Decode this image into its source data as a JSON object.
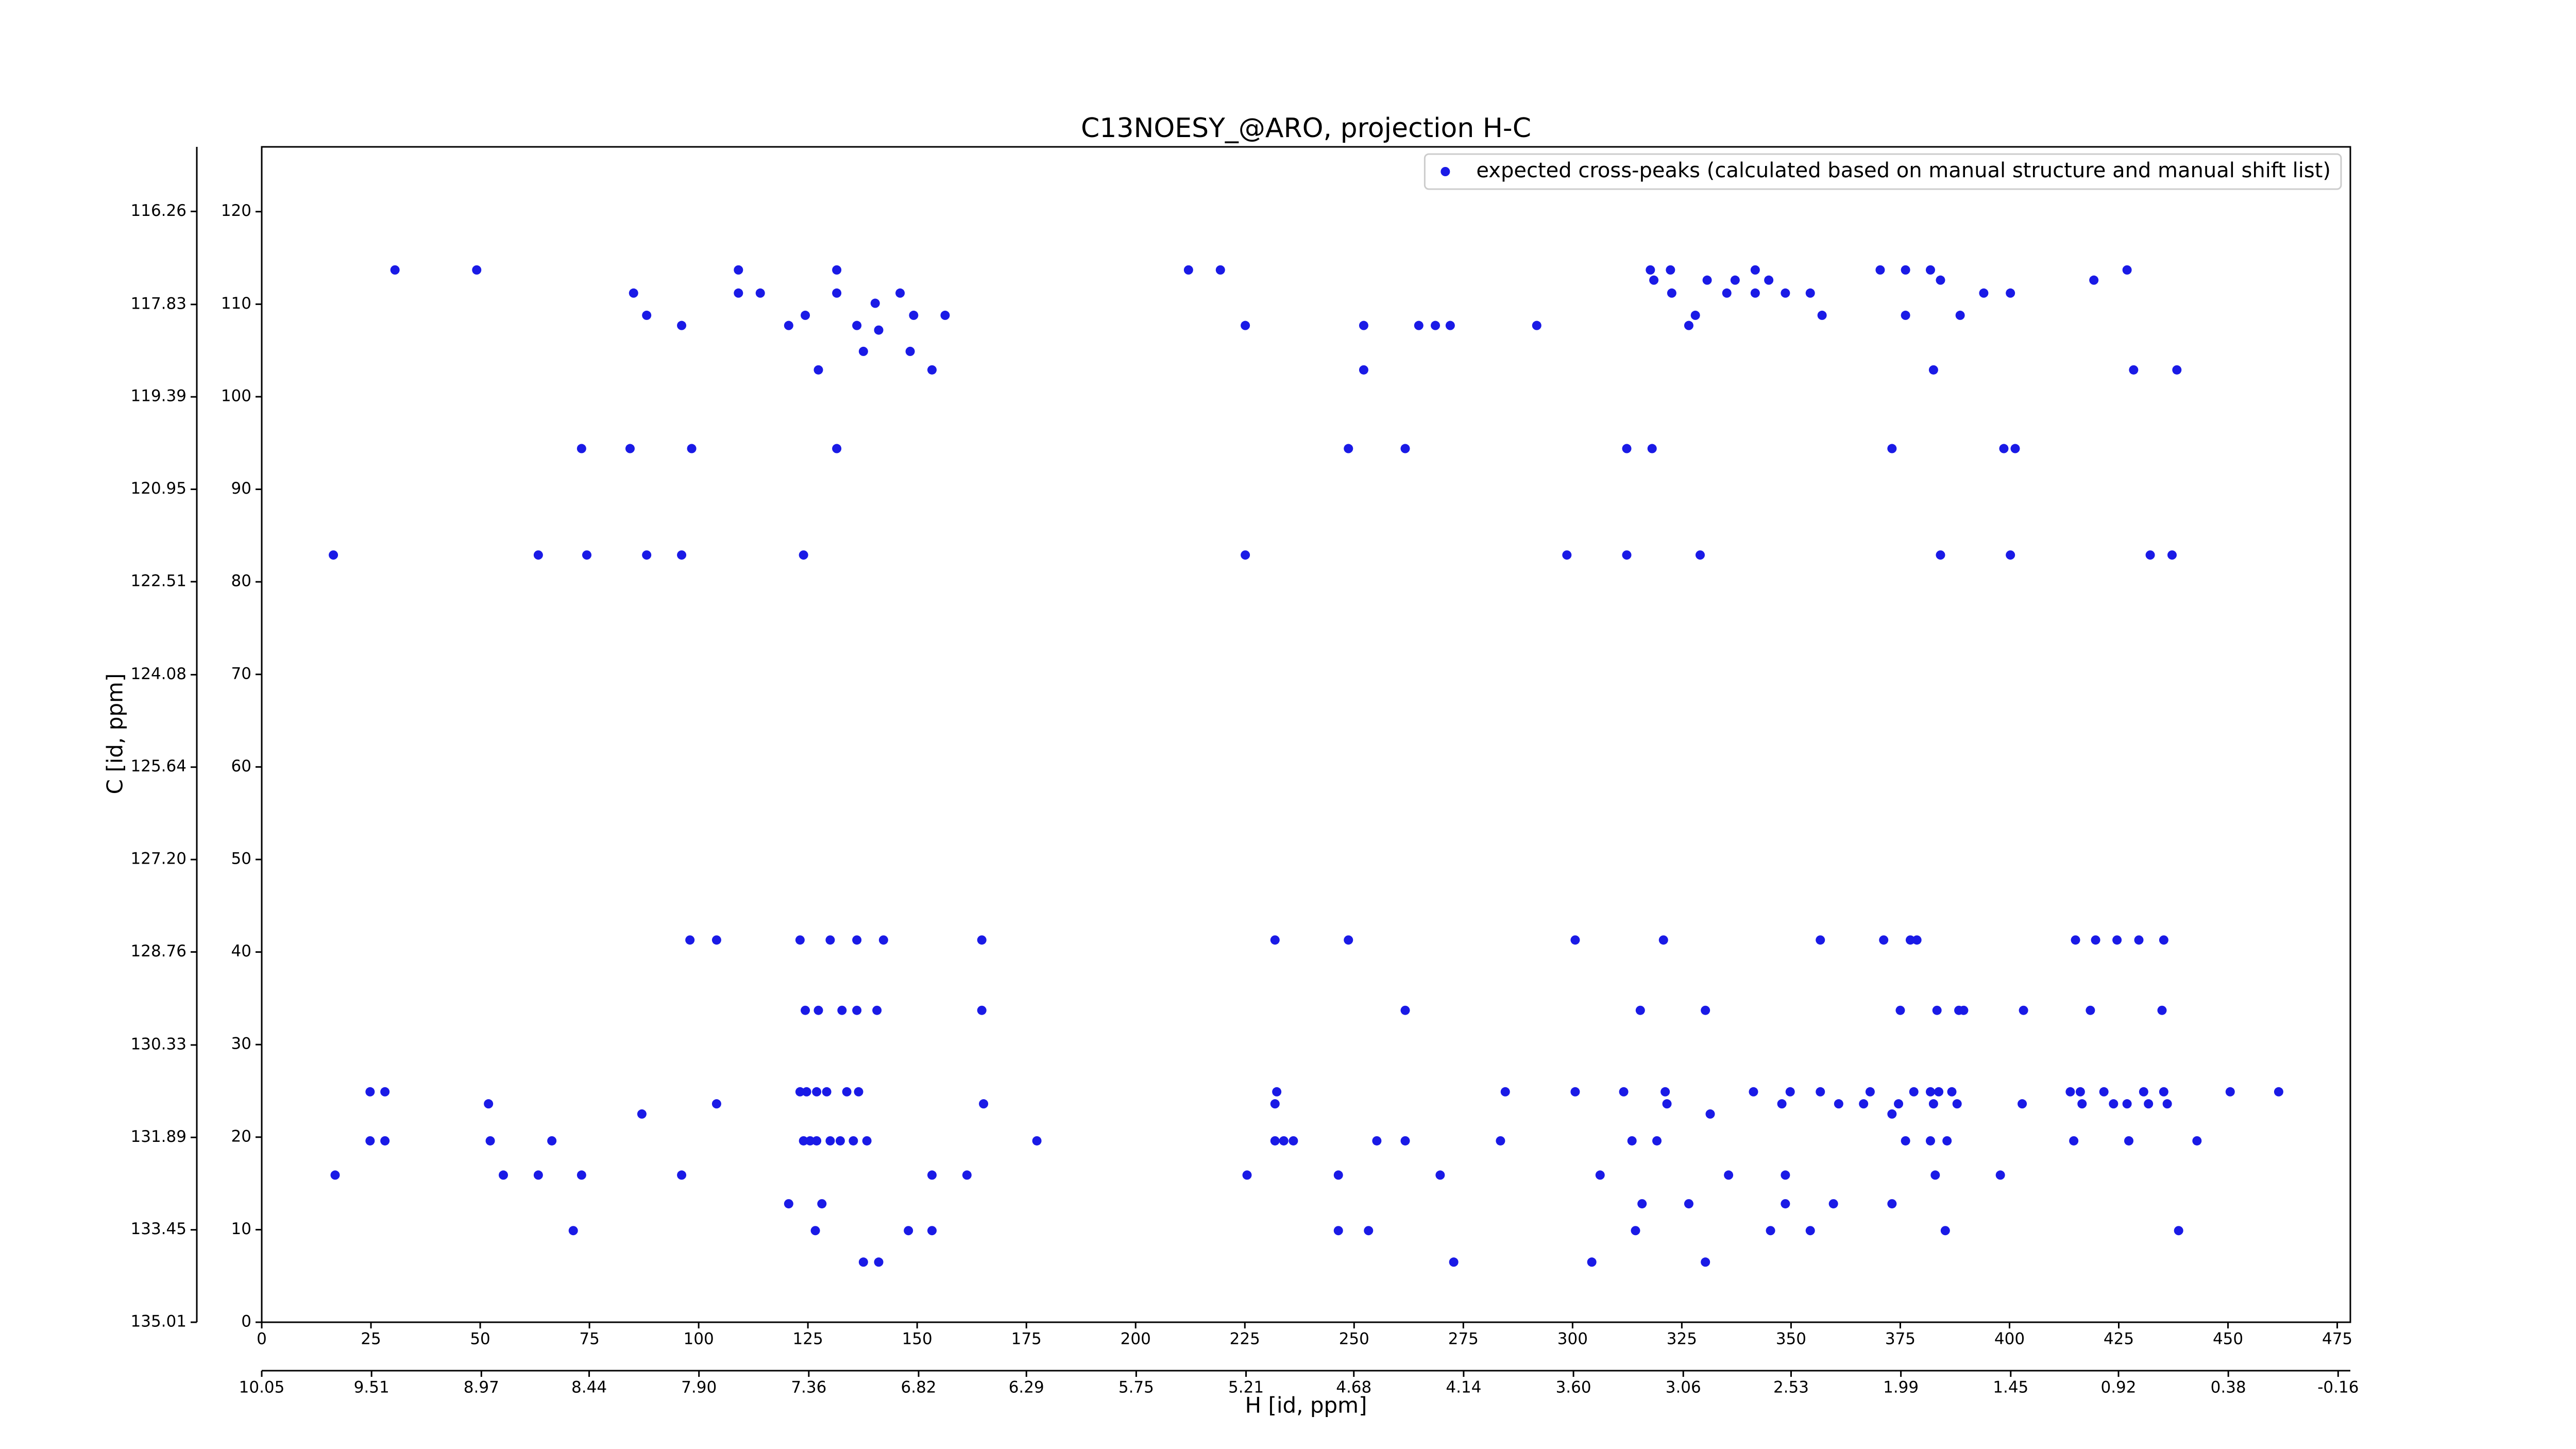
{
  "chart_data": {
    "type": "scatter",
    "title": "C13NOESY_@ARO, projection H-C",
    "x_label": "H [id, ppm]",
    "y_label": "C [id, ppm]",
    "xlim": [
      0,
      478
    ],
    "ylim": [
      0,
      127
    ],
    "xticks": [
      0,
      25,
      50,
      75,
      100,
      125,
      150,
      175,
      200,
      225,
      250,
      275,
      300,
      325,
      350,
      375,
      400,
      425,
      450,
      475
    ],
    "yticks": [
      0,
      10,
      20,
      30,
      40,
      50,
      60,
      70,
      80,
      90,
      100,
      110,
      120
    ],
    "x2lim": [
      10.05,
      -0.22
    ],
    "x2ticks": [
      10.05,
      9.51,
      8.97,
      8.44,
      {
        "value": 7.9,
        "label": "7.90"
      },
      7.36,
      6.82,
      6.29,
      5.75,
      5.21,
      4.68,
      4.14,
      {
        "value": 3.6,
        "label": "3.60"
      },
      3.06,
      2.53,
      1.99,
      1.45,
      0.92,
      0.38,
      -0.16
    ],
    "y2lim": [
      135.01,
      115.17
    ],
    "y2ticks": [
      116.26,
      117.83,
      119.39,
      120.95,
      122.51,
      124.08,
      125.64,
      {
        "value": 127.2,
        "label": "127.20"
      },
      128.76,
      130.33,
      131.89,
      133.45,
      135.01
    ],
    "legend_position": "upper right",
    "series": [
      {
        "name": "expected cross-peaks (calculated based on manual structure and manual shift list)",
        "color": "#1a1ae6",
        "x": [
          30.5,
          49.2,
          109.1,
          131.6,
          212.1,
          219.4,
          317.8,
          322.4,
          341.8,
          370.4,
          376.2,
          381.9,
          426.9,
          318.6,
          330.8,
          337.2,
          344.9,
          384.2,
          419.3,
          85.1,
          109.1,
          114.1,
          131.6,
          146.1,
          322.7,
          335.3,
          341.8,
          348.7,
          354.4,
          394.1,
          400.2,
          140.4,
          88.1,
          124.4,
          149.2,
          156.4,
          328.1,
          357.1,
          376.2,
          388.7,
          96.1,
          120.6,
          136.2,
          225.1,
          252.2,
          264.8,
          268.6,
          272.0,
          291.8,
          326.6,
          141.2,
          137.7,
          148.4,
          127.4,
          153.4,
          252.2,
          382.6,
          428.4,
          438.3,
          73.2,
          84.3,
          98.4,
          131.6,
          248.7,
          261.7,
          312.4,
          318.2,
          373.1,
          398.7,
          401.3,
          16.4,
          63.3,
          74.4,
          88.1,
          96.1,
          124.0,
          225.1,
          298.7,
          312.4,
          329.2,
          384.2,
          400.2,
          432.2,
          437.2,
          98.0,
          104.1,
          123.2,
          130.1,
          136.2,
          142.3,
          164.8,
          231.9,
          248.7,
          300.6,
          320.8,
          356.7,
          371.2,
          377.3,
          378.8,
          415.1,
          419.7,
          424.6,
          429.6,
          435.3,
          124.4,
          127.4,
          132.8,
          136.2,
          140.8,
          164.8,
          261.7,
          315.5,
          330.4,
          375.0,
          383.4,
          388.4,
          389.5,
          403.2,
          418.5,
          434.9,
          24.8,
          28.2,
          123.2,
          124.7,
          127.0,
          129.3,
          133.9,
          136.6,
          232.3,
          284.6,
          300.6,
          311.7,
          321.2,
          341.4,
          349.8,
          356.7,
          368.1,
          378.1,
          381.9,
          383.8,
          386.8,
          413.9,
          416.2,
          421.6,
          430.7,
          435.3,
          450.5,
          461.6,
          51.9,
          104.1,
          165.2,
          231.9,
          321.6,
          347.9,
          360.9,
          366.6,
          374.6,
          382.6,
          388.0,
          402.9,
          416.6,
          423.8,
          426.9,
          431.8,
          436.1,
          87.0,
          331.5,
          373.1,
          24.8,
          28.2,
          52.3,
          66.4,
          124.0,
          125.5,
          127.0,
          130.1,
          132.4,
          135.4,
          138.5,
          177.4,
          231.9,
          233.9,
          236.1,
          255.2,
          261.7,
          283.5,
          313.6,
          319.3,
          376.2,
          381.9,
          385.7,
          414.7,
          427.3,
          442.9,
          16.8,
          55.3,
          63.3,
          73.2,
          96.1,
          153.4,
          161.4,
          225.5,
          246.4,
          269.7,
          306.3,
          335.7,
          348.7,
          383.0,
          397.9,
          120.6,
          128.2,
          315.9,
          326.6,
          348.7,
          359.7,
          373.1,
          71.3,
          126.7,
          148.0,
          153.4,
          246.4,
          253.3,
          314.4,
          345.3,
          354.4,
          385.3,
          438.7,
          137.7,
          141.2,
          272.8,
          304.4,
          330.4
        ],
        "y": [
          113.7,
          113.7,
          113.7,
          113.7,
          113.7,
          113.7,
          113.7,
          113.7,
          113.7,
          113.7,
          113.7,
          113.7,
          113.7,
          112.6,
          112.6,
          112.6,
          112.6,
          112.6,
          112.6,
          111.2,
          111.2,
          111.2,
          111.2,
          111.2,
          111.2,
          111.2,
          111.2,
          111.2,
          111.2,
          111.2,
          111.2,
          110.1,
          108.8,
          108.8,
          108.8,
          108.8,
          108.8,
          108.8,
          108.8,
          108.8,
          107.7,
          107.7,
          107.7,
          107.7,
          107.7,
          107.7,
          107.7,
          107.7,
          107.7,
          107.7,
          107.2,
          104.9,
          104.9,
          102.9,
          102.9,
          102.9,
          102.9,
          102.9,
          102.9,
          94.4,
          94.4,
          94.4,
          94.4,
          94.4,
          94.4,
          94.4,
          94.4,
          94.4,
          94.4,
          94.4,
          82.9,
          82.9,
          82.9,
          82.9,
          82.9,
          82.9,
          82.9,
          82.9,
          82.9,
          82.9,
          82.9,
          82.9,
          82.9,
          82.9,
          41.3,
          41.3,
          41.3,
          41.3,
          41.3,
          41.3,
          41.3,
          41.3,
          41.3,
          41.3,
          41.3,
          41.3,
          41.3,
          41.3,
          41.3,
          41.3,
          41.3,
          41.3,
          41.3,
          41.3,
          33.7,
          33.7,
          33.7,
          33.7,
          33.7,
          33.7,
          33.7,
          33.7,
          33.7,
          33.7,
          33.7,
          33.7,
          33.7,
          33.7,
          33.7,
          33.7,
          24.9,
          24.9,
          24.9,
          24.9,
          24.9,
          24.9,
          24.9,
          24.9,
          24.9,
          24.9,
          24.9,
          24.9,
          24.9,
          24.9,
          24.9,
          24.9,
          24.9,
          24.9,
          24.9,
          24.9,
          24.9,
          24.9,
          24.9,
          24.9,
          24.9,
          24.9,
          24.9,
          24.9,
          23.6,
          23.6,
          23.6,
          23.6,
          23.6,
          23.6,
          23.6,
          23.6,
          23.6,
          23.6,
          23.6,
          23.6,
          23.6,
          23.6,
          23.6,
          23.6,
          23.6,
          22.5,
          22.5,
          22.5,
          19.6,
          19.6,
          19.6,
          19.6,
          19.6,
          19.6,
          19.6,
          19.6,
          19.6,
          19.6,
          19.6,
          19.6,
          19.6,
          19.6,
          19.6,
          19.6,
          19.6,
          19.6,
          19.6,
          19.6,
          19.6,
          19.6,
          19.6,
          19.6,
          19.6,
          19.6,
          15.9,
          15.9,
          15.9,
          15.9,
          15.9,
          15.9,
          15.9,
          15.9,
          15.9,
          15.9,
          15.9,
          15.9,
          15.9,
          15.9,
          15.9,
          12.8,
          12.8,
          12.8,
          12.8,
          12.8,
          12.8,
          12.8,
          9.9,
          9.9,
          9.9,
          9.9,
          9.9,
          9.9,
          9.9,
          9.9,
          9.9,
          9.9,
          9.9,
          6.5,
          6.5,
          6.5,
          6.5,
          6.5
        ]
      }
    ]
  }
}
